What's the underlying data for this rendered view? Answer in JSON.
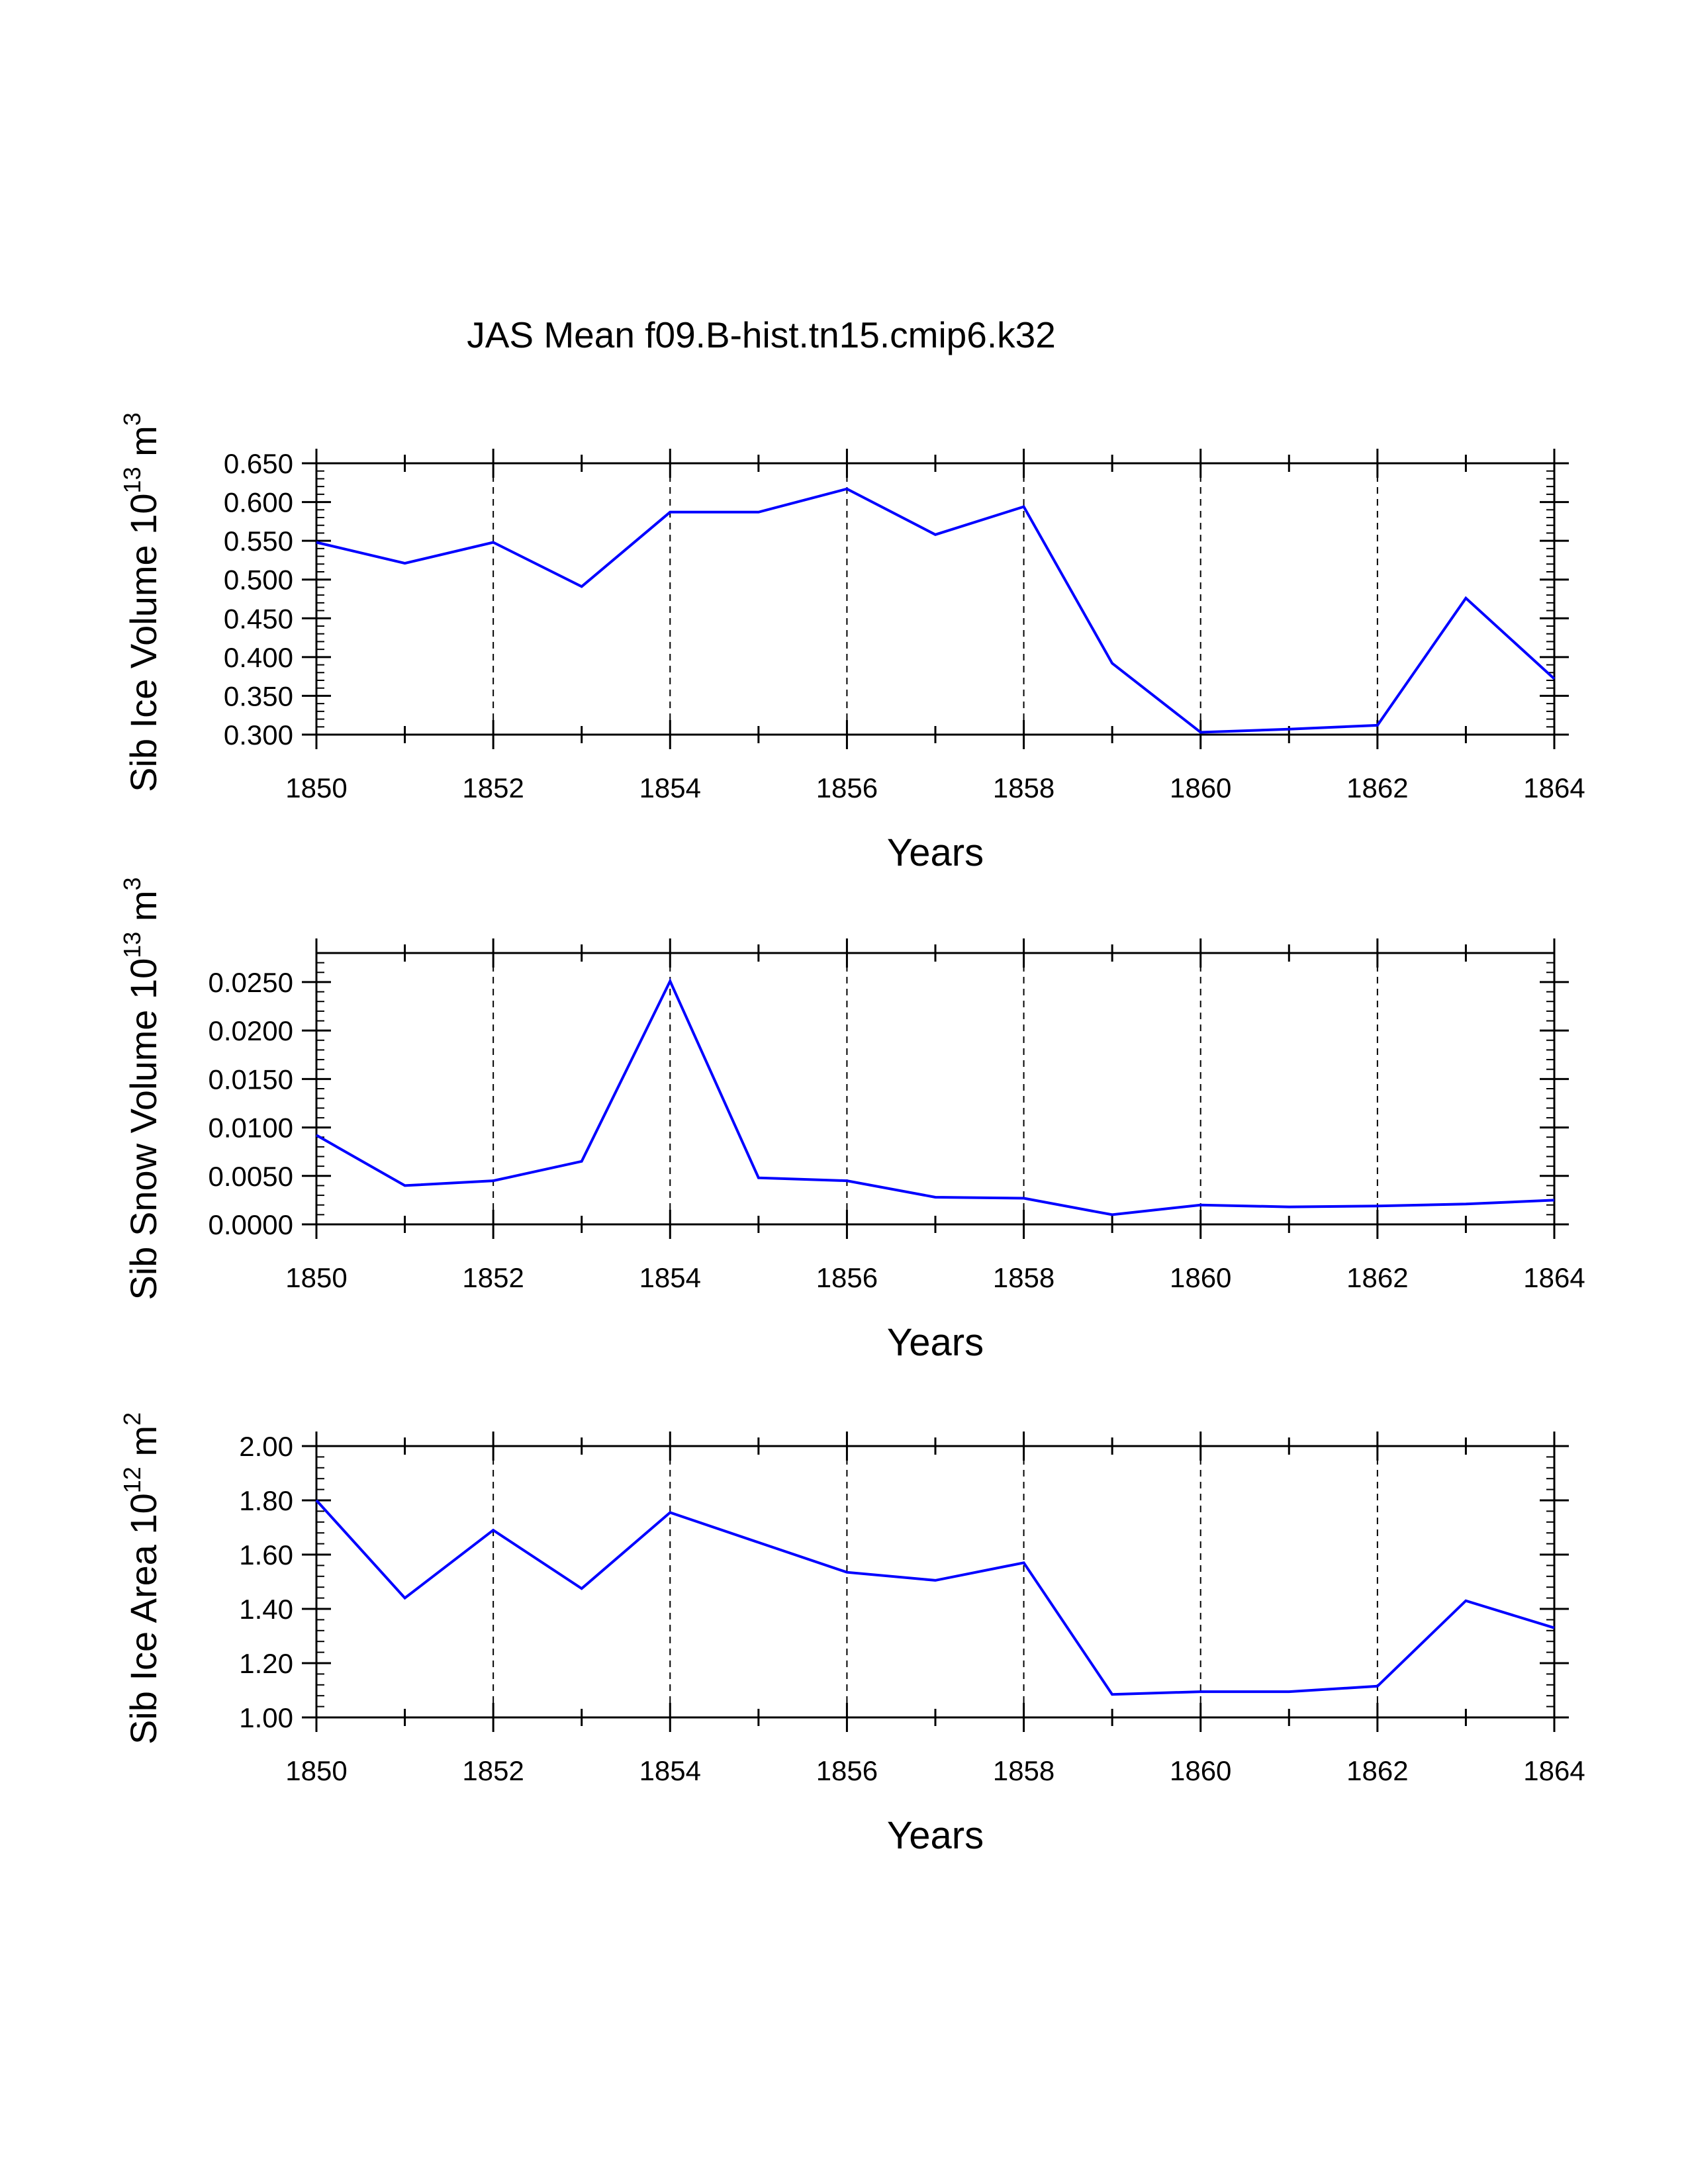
{
  "title": "JAS Mean f09.B-hist.tn15.cmip6.k32",
  "line_color": "#0000ff",
  "chart_data": [
    {
      "type": "line",
      "ylabel": {
        "main": "Sib Ice Volume 10",
        "exp": "13",
        "unit": " m",
        "unit_exp": "3"
      },
      "xlabel": "Years",
      "x": [
        1850,
        1851,
        1852,
        1853,
        1854,
        1855,
        1856,
        1857,
        1858,
        1859,
        1860,
        1861,
        1862,
        1863,
        1864
      ],
      "values": [
        0.548,
        0.521,
        0.548,
        0.491,
        0.587,
        0.587,
        0.617,
        0.558,
        0.594,
        0.392,
        0.303,
        0.307,
        0.312,
        0.476,
        0.372
      ],
      "xlim": [
        1850,
        1864
      ],
      "ylim": [
        0.3,
        0.65
      ],
      "xticks": [
        "1850",
        "1852",
        "1854",
        "1856",
        "1858",
        "1860",
        "1862",
        "1864"
      ],
      "yticks": [
        "0.300",
        "0.350",
        "0.400",
        "0.450",
        "0.500",
        "0.550",
        "0.600",
        "0.650"
      ],
      "ytick_values": [
        0.3,
        0.35,
        0.4,
        0.45,
        0.5,
        0.55,
        0.6,
        0.65
      ],
      "yminor_step": 0.01,
      "grid": "vertical dashed at major x ticks"
    },
    {
      "type": "line",
      "ylabel": {
        "main": "Sib Snow Volume 10",
        "exp": "13",
        "unit": " m",
        "unit_exp": "3"
      },
      "xlabel": "Years",
      "x": [
        1850,
        1851,
        1852,
        1853,
        1854,
        1855,
        1856,
        1857,
        1858,
        1859,
        1860,
        1861,
        1862,
        1863,
        1864
      ],
      "values": [
        0.0092,
        0.004,
        0.0045,
        0.0065,
        0.0251,
        0.0048,
        0.0045,
        0.0028,
        0.0027,
        0.001,
        0.002,
        0.0018,
        0.0019,
        0.0021,
        0.0025
      ],
      "xlim": [
        1850,
        1864
      ],
      "ylim": [
        0.0,
        0.028
      ],
      "xticks": [
        "1850",
        "1852",
        "1854",
        "1856",
        "1858",
        "1860",
        "1862",
        "1864"
      ],
      "yticks": [
        "0.0000",
        "0.0050",
        "0.0100",
        "0.0150",
        "0.0200",
        "0.0250"
      ],
      "ytick_values": [
        0.0,
        0.005,
        0.01,
        0.015,
        0.02,
        0.025
      ],
      "yminor_step": 0.001,
      "grid": "vertical dashed at major x ticks"
    },
    {
      "type": "line",
      "ylabel": {
        "main": "Sib Ice Area 10",
        "exp": "12",
        "unit": " m",
        "unit_exp": "2"
      },
      "xlabel": "Years",
      "x": [
        1850,
        1851,
        1852,
        1853,
        1854,
        1855,
        1856,
        1857,
        1858,
        1859,
        1860,
        1861,
        1862,
        1863,
        1864
      ],
      "values": [
        1.8,
        1.44,
        1.69,
        1.475,
        1.755,
        1.645,
        1.535,
        1.505,
        1.57,
        1.085,
        1.095,
        1.095,
        1.115,
        1.43,
        1.33
      ],
      "xlim": [
        1850,
        1864
      ],
      "ylim": [
        1.0,
        2.0
      ],
      "xticks": [
        "1850",
        "1852",
        "1854",
        "1856",
        "1858",
        "1860",
        "1862",
        "1864"
      ],
      "yticks": [
        "1.00",
        "1.20",
        "1.40",
        "1.60",
        "1.80",
        "2.00"
      ],
      "ytick_values": [
        1.0,
        1.2,
        1.4,
        1.6,
        1.8,
        2.0
      ],
      "yminor_step": 0.04,
      "grid": "vertical dashed at major x ticks"
    }
  ]
}
